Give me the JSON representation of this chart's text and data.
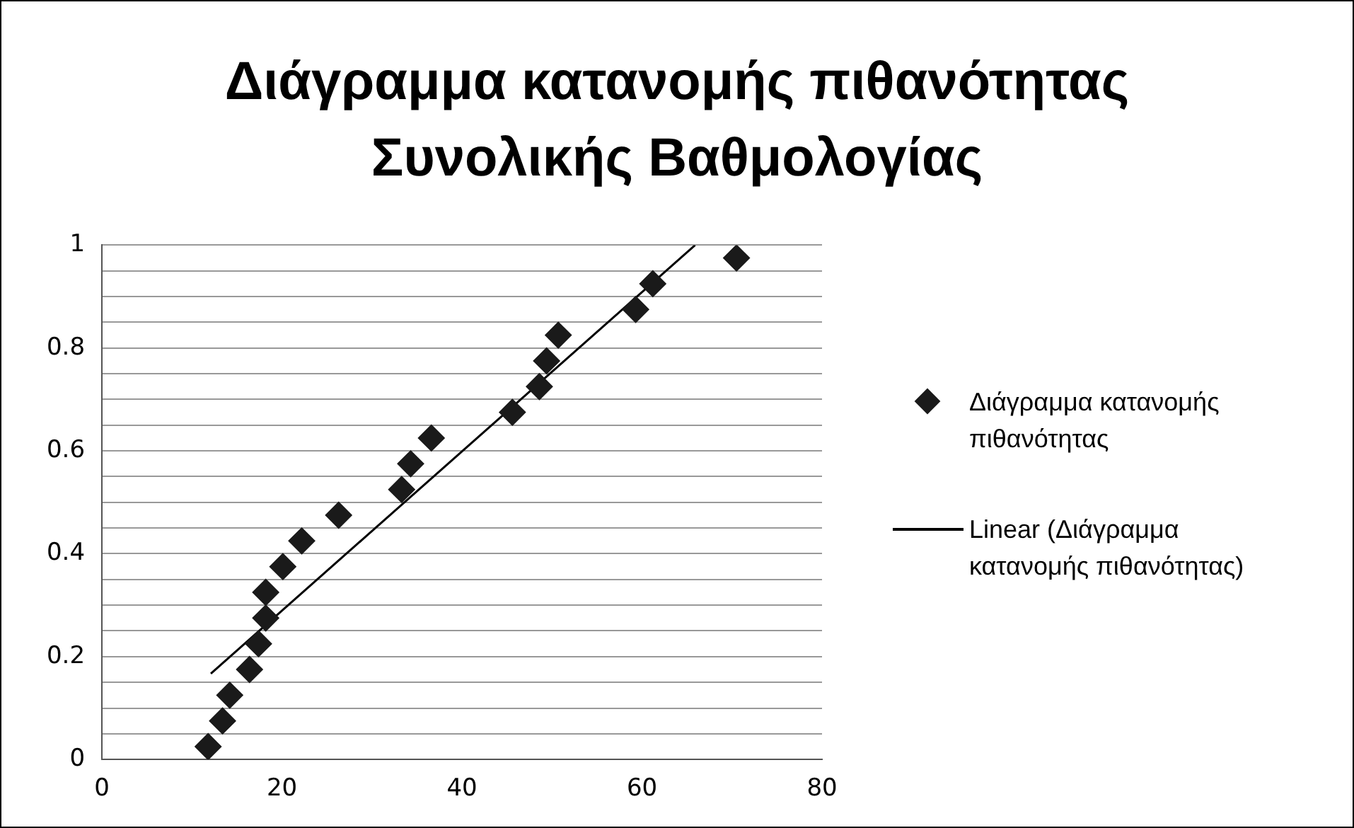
{
  "chart_data": {
    "type": "scatter",
    "title": "Διάγραμμα κατανομής πιθανότητας Συνολικής Βαθμολογίας",
    "xlim": [
      0,
      80
    ],
    "xticks": [
      0,
      20,
      40,
      60,
      80
    ],
    "ylim": [
      0,
      1
    ],
    "yticks": [
      0,
      {
        "value": 0.05,
        "label": null
      },
      {
        "value": 0.1,
        "label": null
      },
      {
        "value": 0.15,
        "label": null
      },
      0.2,
      {
        "value": 0.25,
        "label": null
      },
      {
        "value": 0.3,
        "label": null
      },
      {
        "value": 0.35,
        "label": null
      },
      0.4,
      {
        "value": 0.45,
        "label": null
      },
      {
        "value": 0.5,
        "label": null
      },
      {
        "value": 0.55,
        "label": null
      },
      0.6,
      {
        "value": 0.65,
        "label": null
      },
      {
        "value": 0.7,
        "label": null
      },
      {
        "value": 0.75,
        "label": null
      },
      0.8,
      {
        "value": 0.85,
        "label": null
      },
      {
        "value": 0.9,
        "label": null
      },
      {
        "value": 0.95,
        "label": null
      },
      1
    ],
    "grid": "y",
    "legend": "right",
    "marker": "diamond",
    "series": [
      {
        "name": "Διάγραμμα κατανομής πιθανότητας",
        "color": "#1a1a1a",
        "x": [
          11.8,
          13.4,
          14.2,
          16.4,
          17.4,
          18.2,
          18.2,
          20.1,
          22.2,
          26.3,
          33.3,
          34.3,
          36.6,
          45.6,
          48.6,
          49.4,
          50.7,
          59.3,
          61.2,
          70.5
        ],
        "values": [
          0.025,
          0.075,
          0.125,
          0.175,
          0.225,
          0.275,
          0.325,
          0.375,
          0.425,
          0.475,
          0.525,
          0.575,
          0.625,
          0.675,
          0.725,
          0.775,
          0.825,
          0.875,
          0.925,
          0.975
        ]
      },
      {
        "name": "Linear (Διάγραμμα κατανομής πιθανότητας)",
        "type": "line",
        "marker": "none",
        "color": "#000000",
        "x": [
          12.1,
          65.9
        ],
        "values": [
          0.167,
          1
        ]
      }
    ]
  }
}
